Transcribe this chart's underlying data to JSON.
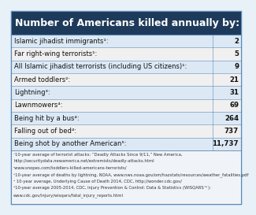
{
  "title": "Number of Americans killed annually by:",
  "title_bg": "#1e3a5a",
  "title_color": "#ffffff",
  "rows": [
    {
      "label": "Islamic jihadist immigrants¹:",
      "value": "2",
      "bg": "#dce9f5"
    },
    {
      "label": "Far right-wing terrorists¹:",
      "value": "5",
      "bg": "#f0f0f0"
    },
    {
      "label": "All Islamic jihadist terrorists (including US citizens)¹:",
      "value": "9",
      "bg": "#dce9f5"
    },
    {
      "label": "Armed toddlers²:",
      "value": "21",
      "bg": "#f0f0f0"
    },
    {
      "label": "Lightning³:",
      "value": "31",
      "bg": "#dce9f5"
    },
    {
      "label": "Lawnmowers⁴:",
      "value": "69",
      "bg": "#f0f0f0"
    },
    {
      "label": "Being hit by a bus⁴:",
      "value": "264",
      "bg": "#dce9f5"
    },
    {
      "label": "Falling out of bed⁴:",
      "value": "737",
      "bg": "#f0f0f0"
    },
    {
      "label": "Being shot by another American⁵:",
      "value": "11,737",
      "bg": "#dce9f5"
    }
  ],
  "footnote_lines": [
    "¹10-year average of terrorist attacks: “Deadly Attacks Since 9/11,” New America,",
    "http://securitydata.newamerica.net/extremists/deadly-attacks.html",
    "²www.snopes.com/toddlers-killed-americans-terrorists/",
    "³10-year average of deaths by lightning, NOAA, www.nws.noaa.gov/om/hazstats/resources/weather_fatalities.pdf",
    "⁴ 10-year average, Underlying Cause of Death 2014, CDC, http://wonder.cdc.gov/",
    "⁵10-year average 2005-2014, CDC, Injury Prevention & Control: Data & Statistics (WISQARS™):",
    "www.cdc.gov/injury/wisqars/fatal_injury_reports.html"
  ],
  "border_color": "#5b8ab8",
  "bg_color": "#e8f0f8",
  "label_fontsize": 6.0,
  "value_fontsize": 6.2,
  "title_fontsize": 9.0,
  "footnote_fontsize": 3.8
}
